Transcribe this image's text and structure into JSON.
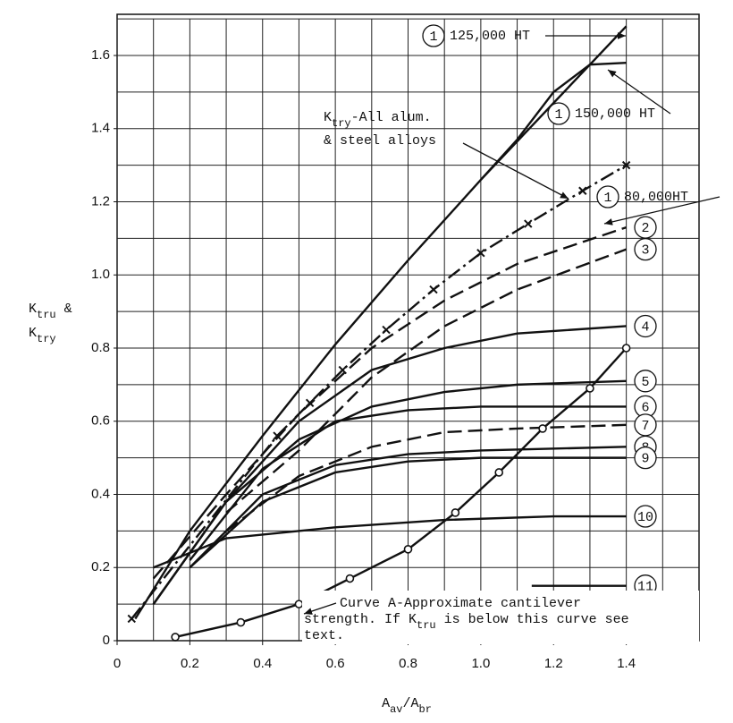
{
  "chart_data": {
    "type": "line",
    "xlabel": [
      "A",
      "av",
      "/A",
      "br"
    ],
    "ylabel": [
      [
        "K",
        "tru",
        " &"
      ],
      [
        "K",
        "try"
      ]
    ],
    "xlim": [
      0,
      1.6
    ],
    "ylim": [
      0,
      1.7
    ],
    "xticks": [
      0,
      0.2,
      0.4,
      0.6,
      0.8,
      {
        "value": 1,
        "label": "1.0"
      },
      1.2,
      1.4
    ],
    "yticks": [
      0,
      0.2,
      0.4,
      0.6,
      0.8,
      {
        "value": 1,
        "label": "1.0"
      },
      1.2,
      1.4,
      1.6
    ],
    "xgrid": [
      0,
      0.1,
      0.2,
      0.3,
      0.4,
      0.5,
      0.6,
      0.7,
      0.8,
      0.9,
      1,
      1.1,
      1.2,
      1.3,
      1.4,
      1.5,
      1.6
    ],
    "ygrid": [
      0,
      0.1,
      0.2,
      0.3,
      0.4,
      0.5,
      0.6,
      0.7,
      0.8,
      0.9,
      1,
      1.1,
      1.2,
      1.3,
      1.4,
      1.5,
      1.6,
      1.7
    ],
    "grid": true,
    "annotations": [
      {
        "lines": [
          [
            "K",
            "try",
            "-All alum."
          ],
          [
            "& steel alloys"
          ]
        ]
      },
      {
        "lines": [
          [
            "Curve A-Approximate cantilever"
          ],
          [
            "strength. If K",
            "tru",
            " is below this curve see"
          ],
          [
            "text."
          ]
        ]
      }
    ],
    "series": [
      {
        "label": "1",
        "name": "125,000 HT",
        "color": "#111",
        "style": "solid",
        "x": [
          0.05,
          0.2,
          0.4,
          0.6,
          0.8,
          1.0,
          1.2,
          1.4
        ],
        "values": [
          0.06,
          0.3,
          0.56,
          0.81,
          1.04,
          1.26,
          1.47,
          1.68
        ]
      },
      {
        "label": "1",
        "name": "150,000 HT",
        "color": "#111",
        "style": "solid",
        "x": [
          1.0,
          1.1,
          1.2,
          1.3,
          1.4
        ],
        "values": [
          1.26,
          1.37,
          1.5,
          1.575,
          1.58
        ]
      },
      {
        "label": "1",
        "name": "80,000HT",
        "color": "#111",
        "style": "dashdot",
        "marker": "x",
        "x": [
          0.04,
          0.44,
          0.53,
          0.62,
          0.74,
          0.87,
          1.0,
          1.13,
          1.28,
          1.4
        ],
        "values": [
          0.06,
          0.56,
          0.65,
          0.74,
          0.85,
          0.96,
          1.06,
          1.14,
          1.23,
          1.3
        ]
      },
      {
        "label": "2",
        "color": "#111",
        "style": "dashed",
        "x": [
          0.1,
          0.3,
          0.5,
          0.7,
          0.9,
          1.1,
          1.4
        ],
        "values": [
          0.17,
          0.4,
          0.62,
          0.8,
          0.93,
          1.03,
          1.13
        ]
      },
      {
        "label": "3",
        "color": "#111",
        "style": "dashed",
        "x": [
          0.3,
          0.5,
          0.7,
          0.9,
          1.1,
          1.4
        ],
        "values": [
          0.35,
          0.52,
          0.72,
          0.86,
          0.96,
          1.07
        ]
      },
      {
        "label": "4",
        "color": "#111",
        "style": "solid",
        "x": [
          0.1,
          0.3,
          0.5,
          0.7,
          0.9,
          1.1,
          1.4
        ],
        "values": [
          0.1,
          0.38,
          0.6,
          0.74,
          0.8,
          0.84,
          0.86
        ]
      },
      {
        "label": "5",
        "color": "#111",
        "style": "solid",
        "x": [
          0.1,
          0.3,
          0.5,
          0.7,
          0.9,
          1.1,
          1.4
        ],
        "values": [
          0.1,
          0.38,
          0.55,
          0.64,
          0.68,
          0.7,
          0.71
        ]
      },
      {
        "label": "6",
        "color": "#111",
        "style": "solid",
        "x": [
          0.2,
          0.4,
          0.6,
          0.8,
          1.0,
          1.4
        ],
        "values": [
          0.22,
          0.47,
          0.6,
          0.63,
          0.64,
          0.64
        ]
      },
      {
        "label": "7",
        "color": "#111",
        "style": "dashed",
        "x": [
          0.3,
          0.5,
          0.7,
          0.9,
          1.1,
          1.4
        ],
        "values": [
          0.3,
          0.45,
          0.53,
          0.57,
          0.58,
          0.59
        ]
      },
      {
        "label": "8",
        "color": "#111",
        "style": "solid",
        "x": [
          0.2,
          0.4,
          0.6,
          0.8,
          1.0,
          1.4
        ],
        "values": [
          0.2,
          0.4,
          0.48,
          0.51,
          0.52,
          0.53
        ]
      },
      {
        "label": "9",
        "color": "#111",
        "style": "solid",
        "x": [
          0.2,
          0.4,
          0.6,
          0.8,
          1.0,
          1.4
        ],
        "values": [
          0.2,
          0.38,
          0.46,
          0.49,
          0.5,
          0.5
        ]
      },
      {
        "label": "10",
        "color": "#111",
        "style": "solid",
        "x": [
          0.1,
          0.3,
          0.6,
          0.9,
          1.2,
          1.4
        ],
        "values": [
          0.2,
          0.28,
          0.31,
          0.33,
          0.34,
          0.34
        ]
      },
      {
        "label": "11",
        "color": "#111",
        "style": "solid",
        "x": [
          1.14,
          1.4
        ],
        "values": [
          0.15,
          0.15
        ]
      },
      {
        "name": "Curve A",
        "color": "#111",
        "style": "solid",
        "marker": "circle",
        "x": [
          0.16,
          0.34,
          0.5,
          0.64,
          0.8,
          0.93,
          1.05,
          1.17,
          1.3,
          1.4
        ],
        "values": [
          0.01,
          0.05,
          0.1,
          0.17,
          0.25,
          0.35,
          0.46,
          0.58,
          0.69,
          0.8
        ]
      }
    ]
  }
}
